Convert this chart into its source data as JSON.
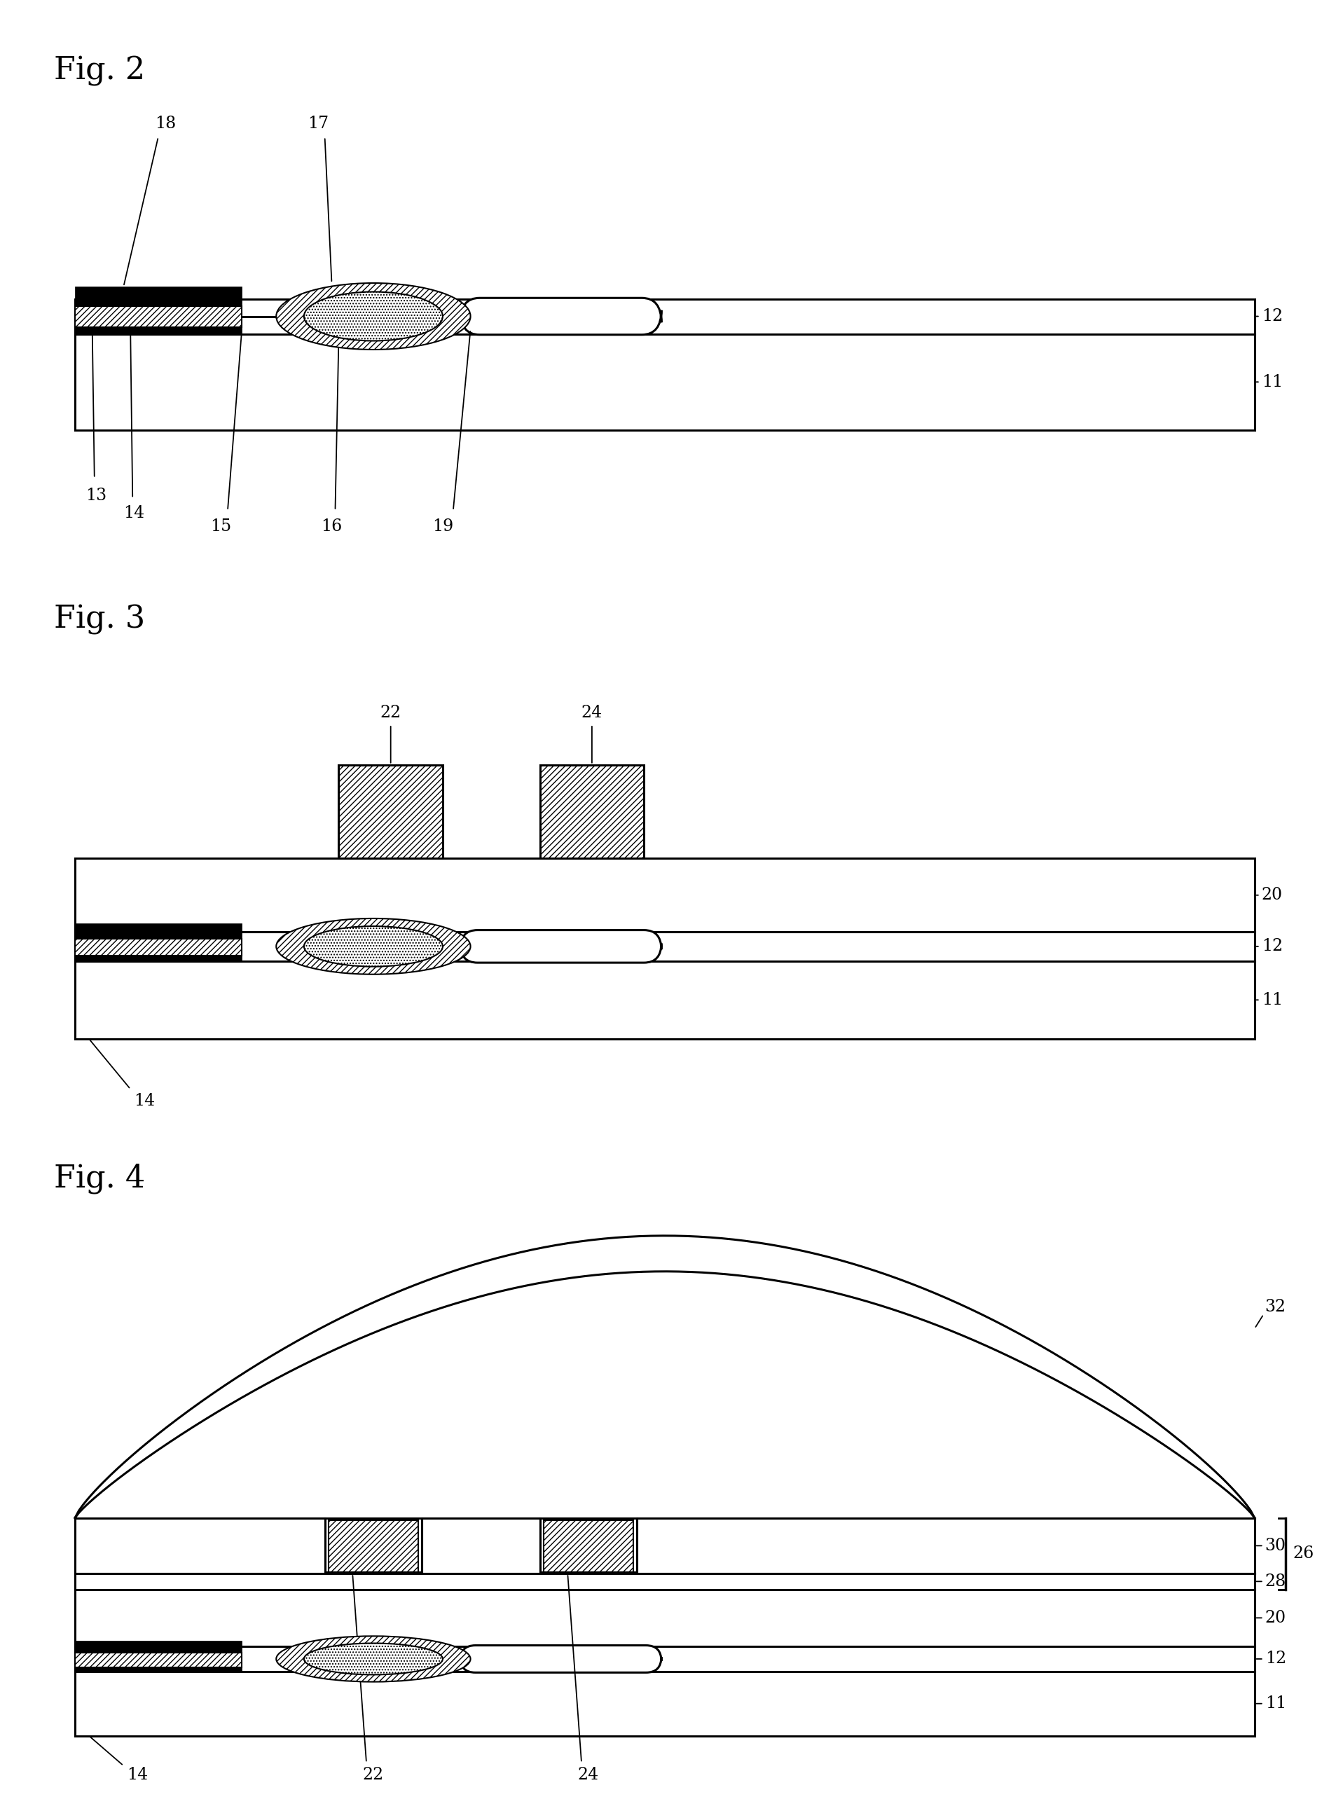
{
  "bg_color": "#ffffff",
  "line_color": "#000000",
  "fig2_title": "Fig. 2",
  "fig3_title": "Fig. 3",
  "fig4_title": "Fig. 4"
}
